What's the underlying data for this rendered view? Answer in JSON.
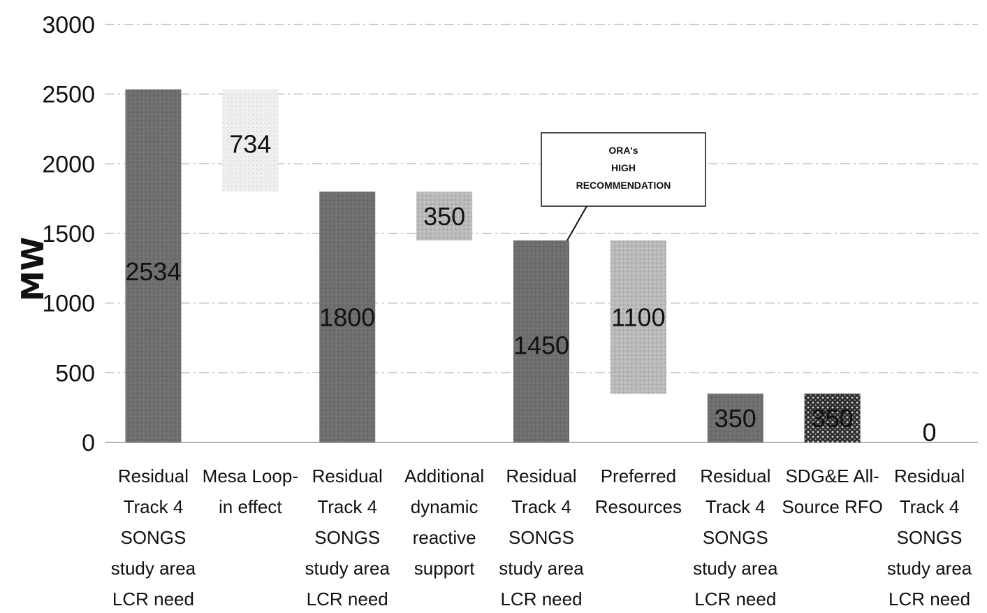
{
  "chart_data": {
    "type": "bar",
    "title": "",
    "ylabel": "MW",
    "xlabel": "",
    "ylim": [
      0,
      3000
    ],
    "yticks": [
      "0",
      "500",
      "1000",
      "1500",
      "2000",
      "2500",
      "3000"
    ],
    "grid": true,
    "categories": [
      [
        "Residual",
        "Track 4",
        "SONGS",
        "study area",
        "LCR need"
      ],
      [
        "Mesa Loop-",
        "in effect"
      ],
      [
        "Residual",
        "Track 4",
        "SONGS",
        "study area",
        "LCR need"
      ],
      [
        "Additional",
        "dynamic",
        "reactive",
        "support"
      ],
      [
        "Residual",
        "Track 4",
        "SONGS",
        "study area",
        "LCR need"
      ],
      [
        "Preferred",
        "Resources"
      ],
      [
        "Residual",
        "Track 4",
        "SONGS",
        "study area",
        "LCR need"
      ],
      [
        "SDG&E All-",
        "Source RFO"
      ],
      [
        "Residual",
        "Track 4",
        "SONGS",
        "study area",
        "LCR need"
      ]
    ],
    "bars": [
      {
        "base": 0,
        "top": 2534,
        "label": "2534",
        "kind": "total"
      },
      {
        "base": 1800,
        "top": 2534,
        "label": "734",
        "kind": "step-light"
      },
      {
        "base": 0,
        "top": 1800,
        "label": "1800",
        "kind": "total"
      },
      {
        "base": 1450,
        "top": 1800,
        "label": "350",
        "kind": "step"
      },
      {
        "base": 0,
        "top": 1450,
        "label": "1450",
        "kind": "total"
      },
      {
        "base": 350,
        "top": 1450,
        "label": "1100",
        "kind": "step"
      },
      {
        "base": 0,
        "top": 350,
        "label": "350",
        "kind": "total"
      },
      {
        "base": 0,
        "top": 350,
        "label": "350",
        "kind": "pattern"
      },
      {
        "base": 0,
        "top": 0,
        "label": "0",
        "kind": "total"
      }
    ],
    "annotation": {
      "lines": [
        "ORA's",
        "HIGH",
        "RECOMMENDATION"
      ],
      "bar_index": 4
    },
    "colors": {
      "total": "#6e6e6e",
      "step": "#b9b9b9",
      "step_light": "#e4e4e4",
      "pattern_bg": "#2a2a2a",
      "pattern_dot": "#cfcfcf",
      "grid": "#9a9a9a"
    }
  }
}
